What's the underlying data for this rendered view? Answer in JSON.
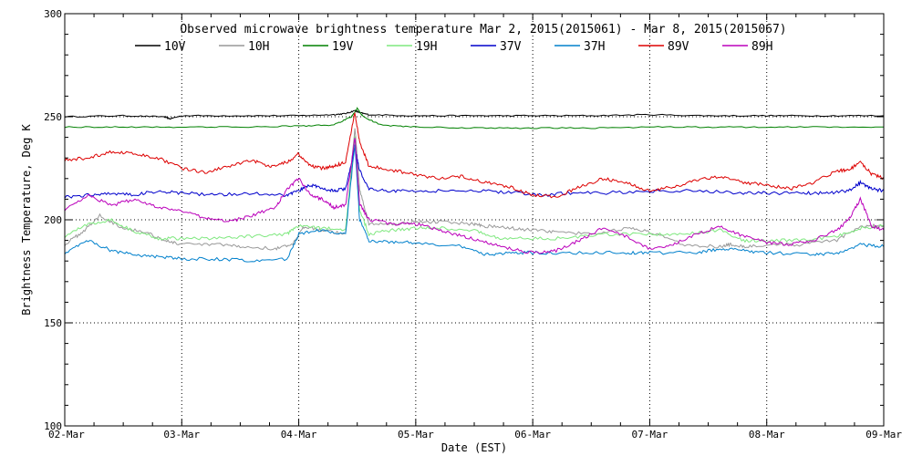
{
  "chart_data": {
    "type": "line",
    "title": "Observed microwave brightness temperature Mar  2, 2015(2015061) - Mar  8, 2015(2015067)",
    "xlabel": "Date (EST)",
    "ylabel": "Brightness Temperature, Deg K",
    "xlim": [
      0,
      7
    ],
    "ylim": [
      100,
      300
    ],
    "x_ticks": [
      {
        "value": 0,
        "label": "02-Mar"
      },
      {
        "value": 1,
        "label": "03-Mar"
      },
      {
        "value": 2,
        "label": "04-Mar"
      },
      {
        "value": 3,
        "label": "05-Mar"
      },
      {
        "value": 4,
        "label": "06-Mar"
      },
      {
        "value": 5,
        "label": "07-Mar"
      },
      {
        "value": 6,
        "label": "08-Mar"
      },
      {
        "value": 7,
        "label": "09-Mar"
      }
    ],
    "y_ticks": [
      100,
      150,
      200,
      250,
      300
    ],
    "grid": true,
    "legend_position": "top",
    "series": [
      {
        "name": "10V",
        "color": "#000000",
        "x": [
          0,
          0.5,
          0.85,
          0.9,
          1.0,
          1.5,
          2.0,
          2.3,
          2.4,
          2.48,
          2.52,
          2.6,
          3.0,
          3.5,
          4.0,
          4.5,
          5.0,
          5.5,
          6.0,
          6.5,
          7.0
        ],
        "y": [
          250,
          250.5,
          250,
          249,
          250.5,
          250.5,
          250.5,
          251,
          251.5,
          253,
          252,
          251,
          250.5,
          250.5,
          250.5,
          250.5,
          251,
          250.5,
          250.5,
          250.5,
          250.5
        ]
      },
      {
        "name": "10H",
        "color": "#999999",
        "x": [
          0,
          0.15,
          0.3,
          0.5,
          0.7,
          0.85,
          1.0,
          1.3,
          1.5,
          1.8,
          1.95,
          2.05,
          2.2,
          2.4,
          2.48,
          2.52,
          2.6,
          2.8,
          3.0,
          3.2,
          3.5,
          3.6,
          3.8,
          4.0,
          4.2,
          4.5,
          4.8,
          5.0,
          5.3,
          5.6,
          5.7,
          5.8,
          6.0,
          6.3,
          6.6,
          6.8,
          7.0
        ],
        "y": [
          188,
          194,
          202,
          196,
          194,
          190,
          188,
          188,
          187,
          186,
          188,
          197,
          195,
          193,
          245,
          215,
          198,
          198,
          199,
          199,
          198,
          197,
          196,
          195,
          194,
          193,
          196,
          194,
          188,
          187,
          188,
          187,
          188,
          188,
          190,
          197,
          197
        ]
      },
      {
        "name": "19V",
        "color": "#008000",
        "x": [
          0,
          0.5,
          1.0,
          1.5,
          2.0,
          2.3,
          2.45,
          2.5,
          2.55,
          2.7,
          3.0,
          3.5,
          4.0,
          4.5,
          5.0,
          5.5,
          6.0,
          6.5,
          7.0
        ],
        "y": [
          245,
          245,
          245,
          245,
          245.5,
          246,
          250,
          254,
          250,
          246,
          245,
          244.5,
          244.5,
          244.5,
          245,
          245,
          245,
          245,
          245
        ]
      },
      {
        "name": "19H",
        "color": "#7FE87F",
        "x": [
          0,
          0.2,
          0.4,
          0.6,
          0.8,
          1.0,
          1.3,
          1.6,
          1.9,
          2.0,
          2.2,
          2.4,
          2.48,
          2.52,
          2.6,
          2.8,
          3.0,
          3.2,
          3.5,
          3.7,
          4.0,
          4.3,
          4.6,
          5.0,
          5.3,
          5.6,
          5.8,
          6.0,
          6.3,
          6.6,
          6.8,
          7.0
        ],
        "y": [
          192,
          198,
          200,
          194,
          191,
          191,
          191,
          192,
          193,
          197,
          196,
          195,
          240,
          205,
          193,
          195,
          196,
          196,
          195,
          191,
          191,
          191,
          193,
          193,
          193,
          195,
          190,
          190,
          190,
          192,
          196,
          197
        ]
      },
      {
        "name": "37V",
        "color": "#0000CC",
        "x": [
          0,
          0.2,
          0.4,
          0.6,
          0.8,
          1.0,
          1.3,
          1.6,
          1.9,
          2.0,
          2.1,
          2.2,
          2.3,
          2.4,
          2.48,
          2.52,
          2.6,
          2.8,
          3.0,
          3.3,
          3.6,
          3.9,
          4.1,
          4.3,
          4.6,
          5.0,
          5.4,
          5.8,
          6.0,
          6.3,
          6.5,
          6.7,
          6.8,
          6.9,
          7.0
        ],
        "y": [
          211,
          212,
          213,
          212,
          214,
          213,
          212,
          213,
          212,
          214,
          217,
          215,
          214,
          215,
          235,
          224,
          215,
          214,
          214,
          214,
          214,
          213,
          212,
          213,
          213,
          214,
          214,
          213,
          213,
          213,
          213,
          214,
          218,
          215,
          214
        ]
      },
      {
        "name": "37H",
        "color": "#0080CC",
        "x": [
          0,
          0.2,
          0.4,
          0.6,
          0.8,
          1.0,
          1.3,
          1.6,
          1.9,
          2.0,
          2.2,
          2.4,
          2.48,
          2.52,
          2.6,
          2.8,
          3.0,
          3.4,
          3.6,
          3.8,
          4.0,
          4.4,
          4.8,
          5.0,
          5.4,
          5.6,
          5.8,
          6.0,
          6.4,
          6.6,
          6.8,
          7.0
        ],
        "y": [
          184,
          190,
          185,
          183,
          182,
          181,
          181,
          180,
          181,
          193,
          195,
          193,
          237,
          200,
          190,
          189,
          189,
          187,
          183,
          184,
          184,
          184,
          184,
          184,
          184,
          186,
          185,
          184,
          183,
          184,
          188,
          187
        ]
      },
      {
        "name": "89V",
        "color": "#DD0000",
        "x": [
          0,
          0.2,
          0.4,
          0.6,
          0.8,
          1.0,
          1.2,
          1.4,
          1.6,
          1.75,
          1.9,
          2.0,
          2.1,
          2.2,
          2.3,
          2.4,
          2.48,
          2.52,
          2.6,
          2.8,
          3.0,
          3.2,
          3.4,
          3.6,
          3.8,
          4.0,
          4.2,
          4.4,
          4.6,
          4.8,
          5.0,
          5.2,
          5.4,
          5.6,
          5.8,
          6.0,
          6.2,
          6.4,
          6.6,
          6.7,
          6.8,
          6.9,
          7.0
        ],
        "y": [
          229,
          230,
          233,
          232,
          230,
          225,
          223,
          226,
          229,
          226,
          228,
          232,
          226,
          225,
          226,
          228,
          252,
          238,
          226,
          224,
          222,
          220,
          221,
          218,
          216,
          212,
          211,
          216,
          220,
          218,
          214,
          216,
          219,
          221,
          218,
          217,
          215,
          218,
          224,
          224,
          228,
          222,
          220
        ]
      },
      {
        "name": "89H",
        "color": "#BB00BB",
        "x": [
          0,
          0.2,
          0.4,
          0.6,
          0.8,
          1.0,
          1.2,
          1.4,
          1.6,
          1.8,
          1.9,
          2.0,
          2.1,
          2.2,
          2.3,
          2.4,
          2.48,
          2.52,
          2.6,
          2.8,
          3.0,
          3.2,
          3.4,
          3.6,
          3.8,
          4.0,
          4.2,
          4.4,
          4.6,
          4.8,
          5.0,
          5.2,
          5.4,
          5.6,
          5.8,
          6.0,
          6.2,
          6.4,
          6.6,
          6.7,
          6.8,
          6.9,
          7.0
        ],
        "y": [
          205,
          212,
          207,
          210,
          206,
          204,
          201,
          199,
          202,
          206,
          215,
          220,
          212,
          210,
          206,
          207,
          240,
          208,
          200,
          198,
          198,
          195,
          192,
          189,
          186,
          184,
          185,
          190,
          196,
          192,
          186,
          188,
          193,
          197,
          192,
          189,
          188,
          190,
          195,
          200,
          210,
          197,
          195
        ]
      }
    ]
  }
}
